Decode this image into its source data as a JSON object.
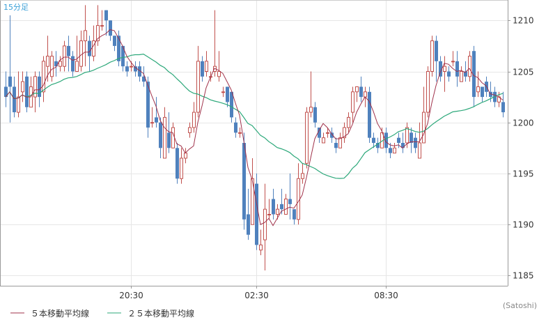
{
  "chart_data": {
    "type": "candlestick",
    "timeframe_label": "15分足",
    "credit": "(Satoshi)",
    "colors": {
      "up": "#c0504d",
      "down": "#4f81bd",
      "ma5": "#a0324b",
      "ma25": "#2ca87a",
      "grid": "#e6e6e6",
      "axis": "#999999"
    },
    "y_axis": {
      "min": 1184,
      "max": 1212,
      "ticks": [
        1185,
        1190,
        1195,
        1200,
        1205,
        1210
      ],
      "tick_labels": [
        "1185",
        "1190",
        "1195",
        "1200",
        "1205",
        "1210"
      ]
    },
    "x_axis": {
      "tick_labels": [
        {
          "label": "20:30",
          "index": 30
        },
        {
          "label": "02:30",
          "index": 60
        },
        {
          "label": "08:30",
          "index": 91
        }
      ]
    },
    "legend": [
      {
        "label": "５本移動平均線",
        "color_key": "ma5"
      },
      {
        "label": "２５本移動平均線",
        "color_key": "ma25"
      }
    ],
    "candles": [
      [
        1203.5,
        1205.0,
        1201.5,
        1202.5
      ],
      [
        1204.5,
        1210.5,
        1200.0,
        1203.5
      ],
      [
        1203.5,
        1204.5,
        1200.5,
        1201.0
      ],
      [
        1201.0,
        1205.0,
        1200.5,
        1202.5
      ],
      [
        1203.0,
        1205.0,
        1202.0,
        1204.0
      ],
      [
        1204.5,
        1205.0,
        1201.0,
        1201.5
      ],
      [
        1201.5,
        1204.5,
        1201.5,
        1203.5
      ],
      [
        1202.5,
        1205.0,
        1201.0,
        1204.5
      ],
      [
        1204.5,
        1205.0,
        1201.5,
        1202.5
      ],
      [
        1203.0,
        1206.5,
        1202.0,
        1206.0
      ],
      [
        1205.5,
        1208.5,
        1204.0,
        1206.5
      ],
      [
        1204.5,
        1207.0,
        1204.0,
        1206.5
      ],
      [
        1206.0,
        1207.0,
        1204.5,
        1205.5
      ],
      [
        1205.5,
        1206.5,
        1205.0,
        1206.0
      ],
      [
        1205.5,
        1208.0,
        1205.0,
        1207.5
      ],
      [
        1207.5,
        1208.5,
        1205.0,
        1206.5
      ],
      [
        1206.5,
        1207.0,
        1204.5,
        1205.0
      ],
      [
        1205.0,
        1208.5,
        1205.0,
        1206.0
      ],
      [
        1205.5,
        1209.0,
        1205.0,
        1208.0
      ],
      [
        1208.0,
        1211.5,
        1205.5,
        1209.0
      ],
      [
        1208.0,
        1208.5,
        1205.0,
        1206.5
      ],
      [
        1206.5,
        1209.5,
        1206.0,
        1208.0
      ],
      [
        1208.0,
        1211.5,
        1207.5,
        1209.5
      ],
      [
        1209.5,
        1211.0,
        1209.0,
        1209.5
      ],
      [
        1211.0,
        1211.0,
        1208.5,
        1210.0
      ],
      [
        1210.0,
        1210.0,
        1208.0,
        1208.5
      ],
      [
        1208.5,
        1208.5,
        1207.0,
        1207.5
      ],
      [
        1208.5,
        1209.0,
        1205.5,
        1206.0
      ],
      [
        1207.5,
        1207.5,
        1205.0,
        1205.5
      ],
      [
        1205.5,
        1206.0,
        1204.5,
        1205.0
      ],
      [
        1205.5,
        1206.0,
        1205.0,
        1205.5
      ],
      [
        1205.5,
        1206.0,
        1204.5,
        1205.0
      ],
      [
        1205.5,
        1206.0,
        1204.0,
        1204.5
      ],
      [
        1204.5,
        1205.5,
        1203.5,
        1204.0
      ],
      [
        1204.0,
        1204.5,
        1198.5,
        1199.5
      ],
      [
        1200.0,
        1201.5,
        1199.5,
        1200.0
      ],
      [
        1200.5,
        1202.5,
        1199.5,
        1200.0
      ],
      [
        1200.0,
        1200.5,
        1196.5,
        1197.5
      ],
      [
        1196.5,
        1201.5,
        1196.5,
        1200.5
      ],
      [
        1199.0,
        1201.0,
        1197.0,
        1197.5
      ],
      [
        1197.5,
        1200.0,
        1197.5,
        1199.5
      ],
      [
        1197.5,
        1198.0,
        1194.0,
        1194.5
      ],
      [
        1194.5,
        1197.5,
        1194.0,
        1196.5
      ],
      [
        1196.5,
        1197.5,
        1196.0,
        1197.0
      ],
      [
        1199.0,
        1200.0,
        1198.5,
        1199.5
      ],
      [
        1199.5,
        1202.0,
        1199.0,
        1201.0
      ],
      [
        1201.0,
        1207.5,
        1200.5,
        1206.0
      ],
      [
        1206.0,
        1206.5,
        1204.0,
        1204.5
      ],
      [
        1205.0,
        1207.0,
        1204.5,
        1206.0
      ],
      [
        1204.5,
        1205.0,
        1204.0,
        1204.5
      ],
      [
        1205.0,
        1211.0,
        1204.5,
        1205.5
      ],
      [
        1204.5,
        1207.0,
        1204.0,
        1205.0
      ],
      [
        1203.0,
        1203.5,
        1202.5,
        1203.0
      ],
      [
        1203.5,
        1203.5,
        1201.5,
        1202.0
      ],
      [
        1203.0,
        1203.0,
        1200.0,
        1200.5
      ],
      [
        1200.0,
        1200.5,
        1198.5,
        1199.0
      ],
      [
        1199.0,
        1199.5,
        1198.5,
        1199.0
      ],
      [
        1198.0,
        1199.0,
        1189.5,
        1190.5
      ],
      [
        1191.0,
        1193.5,
        1188.5,
        1189.0
      ],
      [
        1190.0,
        1196.5,
        1190.0,
        1194.5
      ],
      [
        1194.0,
        1195.0,
        1187.5,
        1188.0
      ],
      [
        1187.5,
        1189.5,
        1187.0,
        1188.0
      ],
      [
        1188.5,
        1194.0,
        1185.5,
        1191.5
      ],
      [
        1191.0,
        1192.5,
        1190.5,
        1191.0
      ],
      [
        1192.5,
        1193.5,
        1190.5,
        1191.0
      ],
      [
        1191.0,
        1192.0,
        1190.5,
        1191.5
      ],
      [
        1192.0,
        1193.5,
        1191.0,
        1191.5
      ],
      [
        1191.0,
        1193.0,
        1191.0,
        1192.5
      ],
      [
        1192.5,
        1195.0,
        1190.5,
        1192.0
      ],
      [
        1191.5,
        1191.5,
        1190.0,
        1190.5
      ],
      [
        1190.5,
        1196.0,
        1190.0,
        1194.5
      ],
      [
        1194.5,
        1196.0,
        1194.0,
        1195.0
      ],
      [
        1196.0,
        1201.5,
        1195.5,
        1201.0
      ],
      [
        1201.0,
        1205.0,
        1200.5,
        1201.5
      ],
      [
        1201.5,
        1202.0,
        1199.5,
        1200.0
      ],
      [
        1199.5,
        1199.5,
        1198.0,
        1198.5
      ],
      [
        1198.0,
        1199.0,
        1198.0,
        1198.5
      ],
      [
        1199.0,
        1199.5,
        1198.5,
        1199.0
      ],
      [
        1199.0,
        1199.5,
        1198.0,
        1198.5
      ],
      [
        1198.0,
        1198.5,
        1197.0,
        1197.5
      ],
      [
        1197.5,
        1199.0,
        1197.5,
        1198.5
      ],
      [
        1198.5,
        1200.0,
        1198.0,
        1199.5
      ],
      [
        1199.5,
        1201.0,
        1199.0,
        1200.5
      ],
      [
        1201.0,
        1203.5,
        1200.0,
        1203.0
      ],
      [
        1203.0,
        1203.5,
        1202.0,
        1203.5
      ],
      [
        1203.5,
        1204.5,
        1202.0,
        1202.5
      ],
      [
        1202.5,
        1203.5,
        1201.5,
        1203.0
      ],
      [
        1203.0,
        1203.5,
        1198.0,
        1198.5
      ],
      [
        1198.5,
        1199.0,
        1197.5,
        1198.0
      ],
      [
        1198.0,
        1198.5,
        1197.0,
        1197.5
      ],
      [
        1197.5,
        1199.5,
        1197.5,
        1199.0
      ],
      [
        1199.0,
        1199.5,
        1197.0,
        1197.5
      ],
      [
        1197.5,
        1198.0,
        1196.5,
        1197.0
      ],
      [
        1197.0,
        1198.0,
        1197.0,
        1197.5
      ],
      [
        1198.5,
        1199.0,
        1197.5,
        1198.0
      ],
      [
        1198.0,
        1199.0,
        1197.0,
        1197.5
      ],
      [
        1198.0,
        1200.0,
        1197.5,
        1199.5
      ],
      [
        1199.0,
        1199.5,
        1197.0,
        1198.0
      ],
      [
        1198.5,
        1199.0,
        1197.0,
        1197.5
      ],
      [
        1196.5,
        1200.0,
        1196.5,
        1198.0
      ],
      [
        1198.0,
        1203.5,
        1198.0,
        1201.0
      ],
      [
        1201.0,
        1205.5,
        1200.5,
        1205.0
      ],
      [
        1205.0,
        1208.5,
        1204.5,
        1208.0
      ],
      [
        1208.0,
        1208.5,
        1204.0,
        1206.0
      ],
      [
        1206.0,
        1206.5,
        1204.0,
        1204.5
      ],
      [
        1205.0,
        1206.5,
        1203.0,
        1205.5
      ],
      [
        1205.0,
        1205.5,
        1204.0,
        1204.5
      ],
      [
        1206.0,
        1207.0,
        1205.5,
        1206.0
      ],
      [
        1206.0,
        1207.0,
        1203.5,
        1204.5
      ],
      [
        1204.0,
        1205.5,
        1204.0,
        1205.0
      ],
      [
        1205.0,
        1206.0,
        1204.0,
        1204.5
      ],
      [
        1204.5,
        1207.0,
        1204.0,
        1206.5
      ],
      [
        1207.0,
        1207.5,
        1201.5,
        1202.5
      ],
      [
        1203.0,
        1205.0,
        1202.5,
        1203.5
      ],
      [
        1203.5,
        1203.5,
        1202.0,
        1202.5
      ],
      [
        1204.0,
        1204.5,
        1202.5,
        1203.0
      ],
      [
        1203.0,
        1204.0,
        1202.0,
        1202.5
      ],
      [
        1203.0,
        1203.5,
        1201.5,
        1202.0
      ],
      [
        1202.0,
        1203.0,
        1201.5,
        1202.5
      ],
      [
        1202.0,
        1203.0,
        1200.5,
        1201.0
      ]
    ]
  }
}
